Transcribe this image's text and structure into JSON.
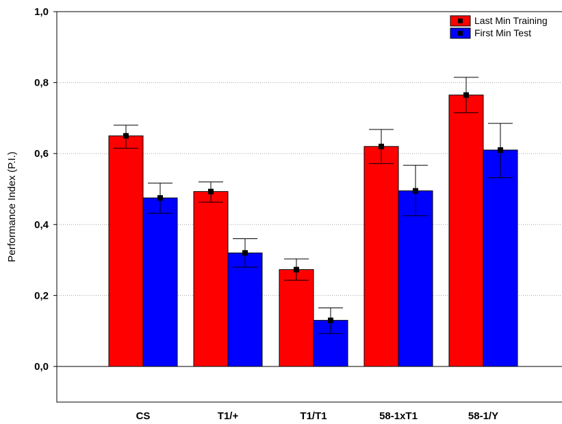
{
  "chart_data": {
    "type": "bar",
    "title": "",
    "xlabel": "",
    "ylabel": "Performance Index (P.I.)",
    "ylim": [
      -0.1,
      1.0
    ],
    "y_ticks": [
      "0,0",
      "0,2",
      "0,4",
      "0,6",
      "0,8",
      "1,0"
    ],
    "y_tick_values": [
      0.0,
      0.2,
      0.4,
      0.6,
      0.8,
      1.0
    ],
    "categories": [
      "CS",
      "T1/+",
      "T1/T1",
      "58-1xT1",
      "58-1/Y"
    ],
    "series": [
      {
        "name": "Last Min Training",
        "color": "#ff0000",
        "values": [
          0.65,
          0.493,
          0.273,
          0.62,
          0.765
        ],
        "error_low": [
          0.615,
          0.463,
          0.243,
          0.572,
          0.715
        ],
        "error_high": [
          0.68,
          0.52,
          0.303,
          0.668,
          0.815
        ]
      },
      {
        "name": "First Min Test",
        "color": "#0000ff",
        "values": [
          0.475,
          0.32,
          0.13,
          0.495,
          0.61
        ],
        "error_low": [
          0.432,
          0.28,
          0.093,
          0.425,
          0.532
        ],
        "error_high": [
          0.517,
          0.36,
          0.165,
          0.567,
          0.685
        ]
      }
    ],
    "grid": true,
    "legend_position": "top-right"
  }
}
